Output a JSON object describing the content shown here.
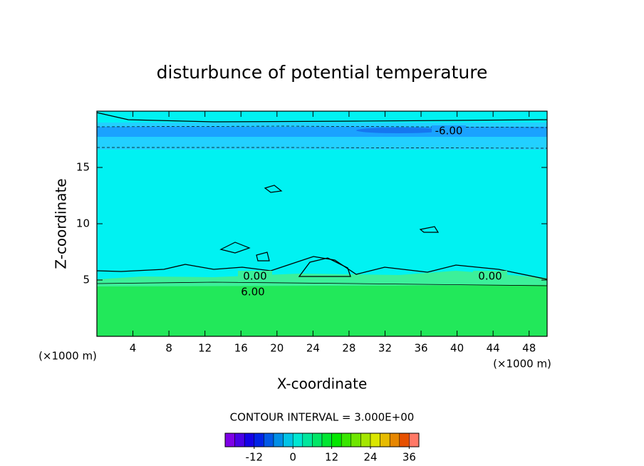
{
  "chart_data": {
    "type": "contour",
    "title": "disturbunce of potential temperature",
    "x_label": "X-coordinate",
    "y_label": "Z-coordinate",
    "x_unit_label": "(×1000 m)",
    "y_unit_label": "(×1000 m)",
    "xlim": [
      0,
      50
    ],
    "xticks": [
      4,
      8,
      12,
      16,
      20,
      24,
      28,
      32,
      36,
      40,
      44,
      48
    ],
    "ylim": [
      0,
      20
    ],
    "yticks": [
      5,
      10,
      15
    ],
    "contour_interval_label": "CONTOUR INTERVAL = 3.000E+00",
    "contour_interval": 3,
    "contour_labels": [
      {
        "value": 0,
        "label": "0.00"
      },
      {
        "value": 0,
        "label": "0.00"
      },
      {
        "value": 6,
        "label": "6.00"
      },
      {
        "value": -6,
        "label": "-6.00"
      }
    ],
    "colorbar": {
      "lim": [
        -21,
        39
      ],
      "ticks": [
        -12,
        0,
        12,
        24,
        36
      ]
    }
  }
}
